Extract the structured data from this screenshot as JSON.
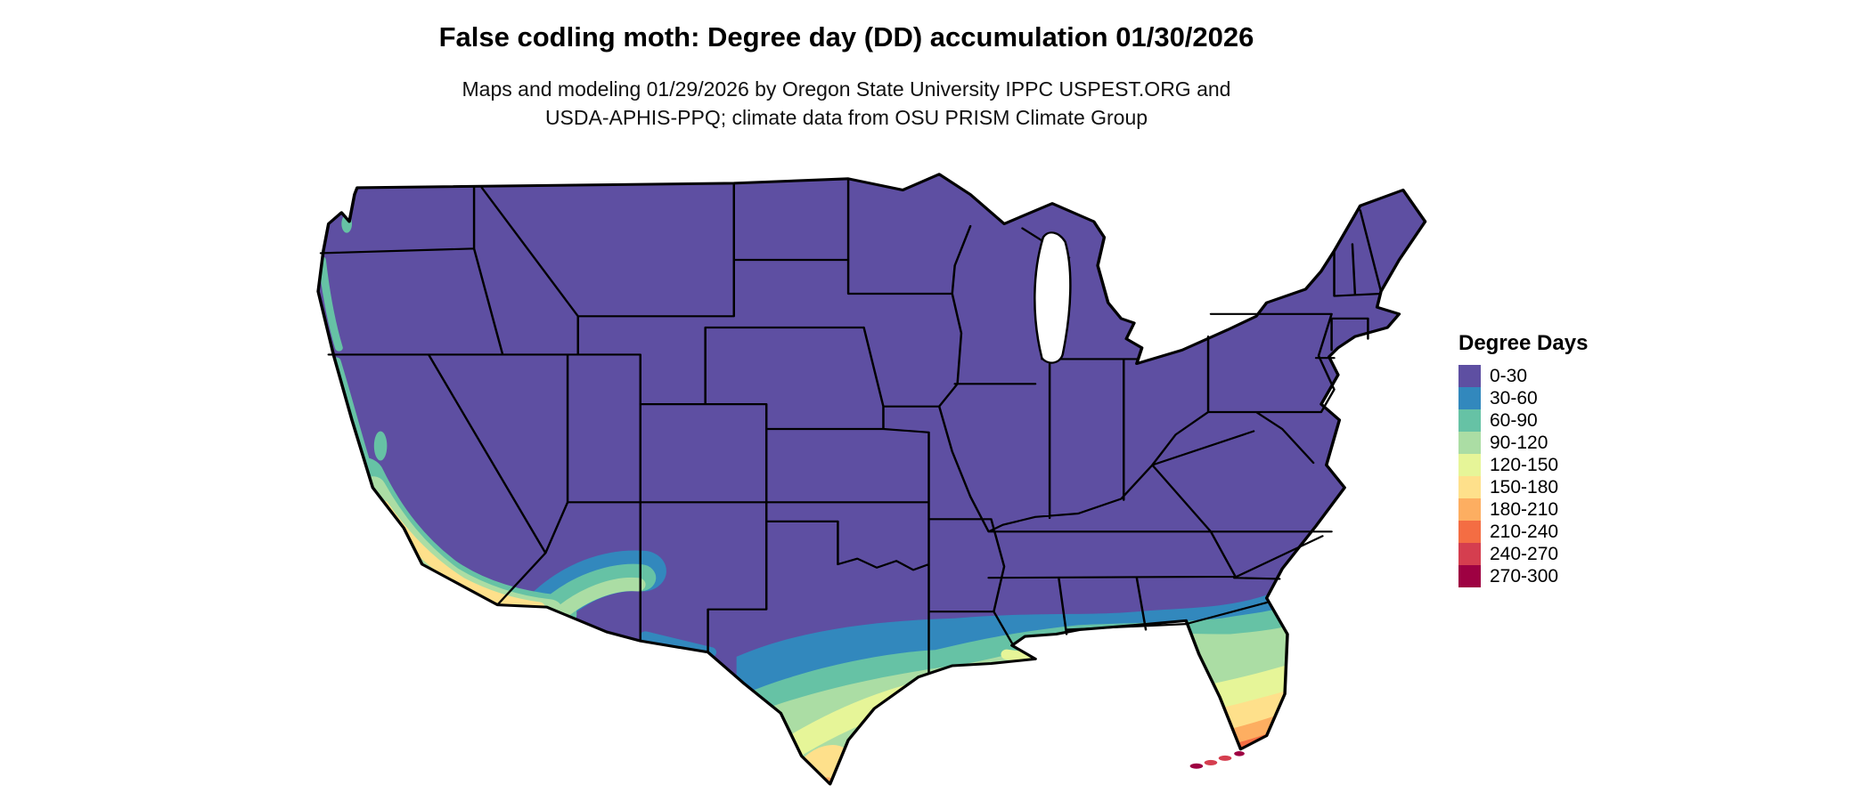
{
  "header": {
    "title": "False codling moth: Degree day (DD) accumulation 01/30/2026",
    "subtitle_line1": "Maps and modeling 01/29/2026 by Oregon State University IPPC USPEST.ORG and",
    "subtitle_line2": "USDA-APHIS-PPQ; climate data from OSU PRISM Climate Group"
  },
  "legend": {
    "title": "Degree Days",
    "entries": [
      {
        "label": "0-30",
        "color": "#5e4fa2"
      },
      {
        "label": "30-60",
        "color": "#3288bd"
      },
      {
        "label": "60-90",
        "color": "#66c2a5"
      },
      {
        "label": "90-120",
        "color": "#abdda4"
      },
      {
        "label": "120-150",
        "color": "#e6f598"
      },
      {
        "label": "150-180",
        "color": "#fee08b"
      },
      {
        "label": "180-210",
        "color": "#fdae61"
      },
      {
        "label": "210-240",
        "color": "#f46d43"
      },
      {
        "label": "240-270",
        "color": "#d53e4f"
      },
      {
        "label": "270-300",
        "color": "#9e0142"
      }
    ]
  },
  "map": {
    "region": "Contiguous United States",
    "base_color": "#5e4fa2",
    "border_color": "#000000",
    "background_color": "#ffffff"
  }
}
